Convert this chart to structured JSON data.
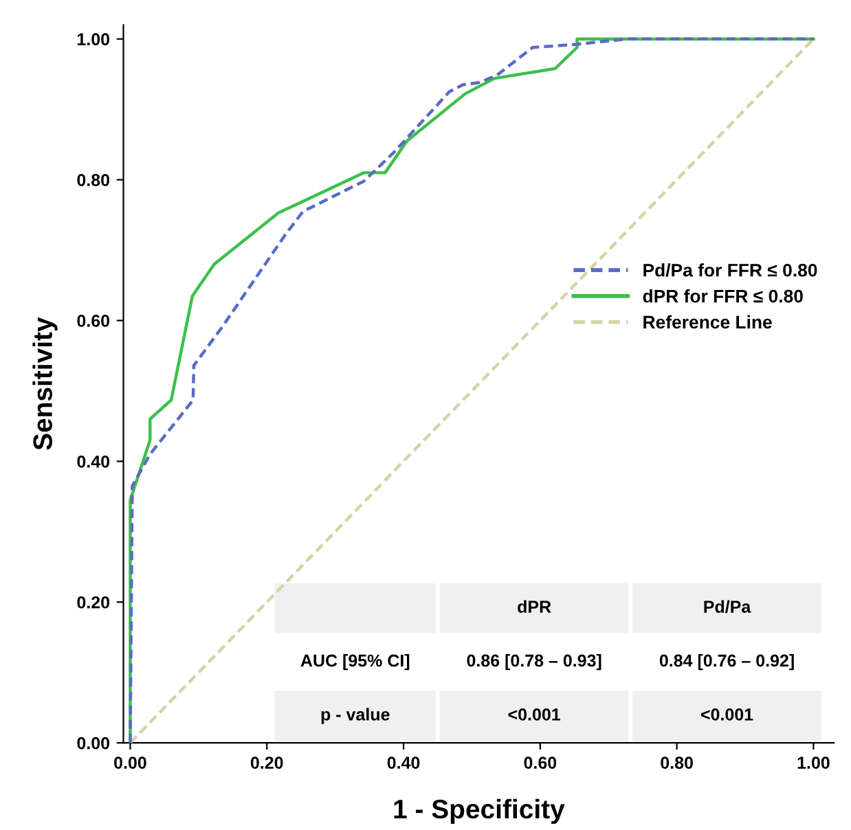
{
  "chart_data": {
    "type": "line",
    "xlabel": "1 - Specificity",
    "ylabel": "Sensitivity",
    "xlim": [
      -0.01,
      1.03
    ],
    "ylim": [
      0,
      1.02
    ],
    "xticks": [
      {
        "value": 0,
        "label": "0.00"
      },
      {
        "value": 0.2,
        "label": "0.20"
      },
      {
        "value": 0.4,
        "label": "0.40"
      },
      {
        "value": 0.6,
        "label": "0.60"
      },
      {
        "value": 0.8,
        "label": "0.80"
      },
      {
        "value": 1,
        "label": "1.00"
      }
    ],
    "yticks": [
      {
        "value": 0,
        "label": "0.00"
      },
      {
        "value": 0.2,
        "label": "0.20"
      },
      {
        "value": 0.4,
        "label": "0.40"
      },
      {
        "value": 0.6,
        "label": "0.60"
      },
      {
        "value": 0.8,
        "label": "0.80"
      },
      {
        "value": 1,
        "label": "1.00"
      }
    ],
    "grid": false,
    "legend": "right",
    "marker": "none",
    "series": [
      {
        "name": "Pd/Pa for FFR ≤ 0.80",
        "color": "#5a6bc4",
        "line_style": "dashed",
        "x": [
          0,
          0.003,
          0.029,
          0.092,
          0.093,
          0.134,
          0.227,
          0.253,
          0.342,
          0.385,
          0.467,
          0.487,
          0.51,
          0.536,
          0.589,
          0.648,
          0.727,
          1
        ],
        "values": [
          0,
          0.365,
          0.41,
          0.487,
          0.536,
          0.59,
          0.722,
          0.755,
          0.798,
          0.838,
          0.925,
          0.935,
          0.938,
          0.948,
          0.988,
          0.992,
          1,
          1
        ]
      },
      {
        "name": "dPR for FFR ≤ 0.80",
        "color": "#3cc04a",
        "line_style": "solid",
        "x": [
          0,
          0,
          0.029,
          0.029,
          0.06,
          0.091,
          0.123,
          0.217,
          0.342,
          0.373,
          0.405,
          0.49,
          0.533,
          0.622,
          0.654,
          0.654,
          1
        ],
        "values": [
          0,
          0.345,
          0.43,
          0.46,
          0.487,
          0.635,
          0.68,
          0.753,
          0.81,
          0.81,
          0.855,
          0.922,
          0.944,
          0.958,
          0.988,
          1,
          1
        ]
      },
      {
        "name": "Reference Line",
        "color": "#d6d3a4",
        "line_style": "dashed",
        "x": [
          0,
          1
        ],
        "values": [
          0,
          1
        ]
      }
    ],
    "annotations": [
      "dPR",
      "Pd/Pa",
      "AUC [95% CI]",
      "0.86 [0.78 – 0.93]",
      "0.84 [0.76 – 0.92]",
      "p - value",
      "<0.001",
      "<0.001"
    ]
  }
}
